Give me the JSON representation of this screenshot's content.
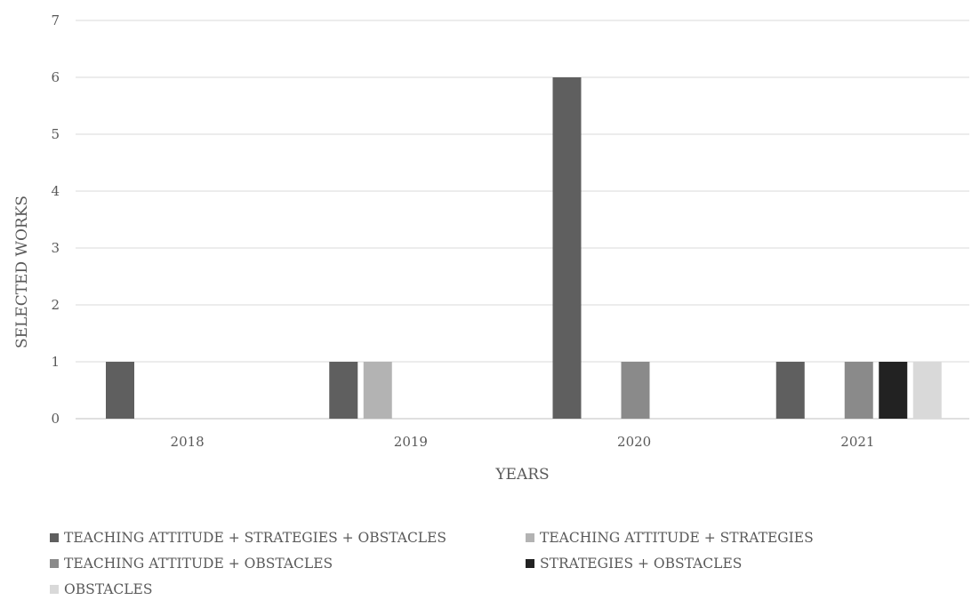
{
  "chart_data": {
    "type": "bar",
    "title": "",
    "xlabel": "YEARS",
    "ylabel": "SELECTED WORKS",
    "categories": [
      "2018",
      "2019",
      "2020",
      "2021"
    ],
    "ylim": [
      0,
      7
    ],
    "yticks": [
      0,
      1,
      2,
      3,
      4,
      5,
      6,
      7
    ],
    "grid": true,
    "legend_position": "bottom",
    "series": [
      {
        "name": "TEACHING ATTITUDE + STRATEGIES + OBSTACLES",
        "color": "#5f5f5f",
        "values": [
          1,
          1,
          6,
          1
        ]
      },
      {
        "name": "TEACHING ATTITUDE + STRATEGIES",
        "color": "#b3b3b3",
        "values": [
          0,
          1,
          0,
          0
        ]
      },
      {
        "name": "TEACHING ATTITUDE + OBSTACLES",
        "color": "#8a8a8a",
        "values": [
          0,
          0,
          1,
          1
        ]
      },
      {
        "name": "STRATEGIES + OBSTACLES",
        "color": "#222222",
        "values": [
          0,
          0,
          0,
          1
        ]
      },
      {
        "name": "OBSTACLES",
        "color": "#d9d9d9",
        "values": [
          0,
          0,
          0,
          1
        ]
      }
    ]
  }
}
